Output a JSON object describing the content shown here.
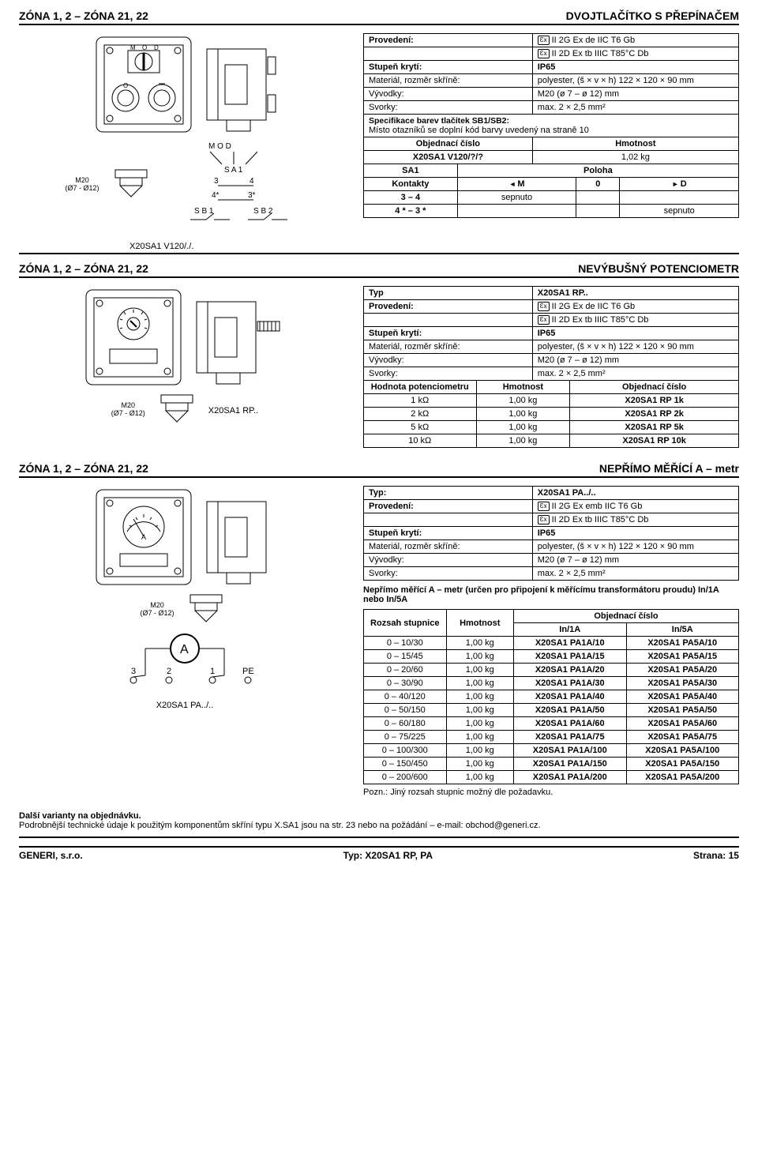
{
  "s1": {
    "zone": "ZÓNA 1, 2 – ZÓNA 21, 22",
    "title": "DVOJTLAČÍTKO S PŘEPÍNAČEM",
    "specs": {
      "provedeni_label": "Provedení:",
      "provedeni_l1": "II 2G Ex de IIC T6 Gb",
      "provedeni_l2": "II 2D Ex tb IIIC T85°C Db",
      "stupen_label": "Stupeň krytí:",
      "stupen": "IP65",
      "material_label": "Materiál, rozměr skříně:",
      "material": "polyester, (š × v × h) 122 × 120 × 90 mm",
      "vyvodky_label": "Vývodky:",
      "vyvodky": "M20 (ø 7 – ø 12) mm",
      "svorky_label": "Svorky:",
      "svorky": "max. 2 × 2,5 mm²",
      "spec_note1": "Specifikace barev tlačítek SB1/SB2:",
      "spec_note2": "Místo otazníků se doplní kód barvy uvedený na straně 10"
    },
    "order": {
      "h1": "Objednací číslo",
      "h2": "Hmotnost",
      "v1": "X20SA1 V120/?/?",
      "v2": "1,02 kg"
    },
    "contacts": {
      "sa1": "SA1",
      "poloha": "Poloha",
      "kontakty": "Kontakty",
      "m": "M",
      "zero": "0",
      "d": "D",
      "r1a": "3 – 4",
      "r1b": "sepnuto",
      "r2a": "4 * – 3 *",
      "r2c": "sepnuto"
    },
    "diagram": {
      "m20_label": "M20\n(Ø7 - Ø12)",
      "mod": "M  O  D",
      "sa1": "S A 1",
      "t3": "3",
      "t4": "4",
      "t4s": "4*",
      "t3s": "3*",
      "sb1": "S B 1",
      "sb2": "S B 2"
    },
    "ref": "X20SA1 V120/./."
  },
  "s2": {
    "zone": "ZÓNA 1, 2 – ZÓNA 21, 22",
    "title": "NEVÝBUŠNÝ POTENCIOMETR",
    "typ_label": "Typ",
    "typ": "X20SA1 RP..",
    "specs": {
      "provedeni_label": "Provedení:",
      "provedeni_l1": "II 2G Ex de IIC T6 Gb",
      "provedeni_l2": "II 2D Ex tb IIIC T85°C Db",
      "stupen_label": "Stupeň krytí:",
      "stupen": "IP65",
      "material_label": "Materiál, rozměr skříně:",
      "material": "polyester, (š × v × h) 122 × 120 × 90 mm",
      "vyvodky_label": "Vývodky:",
      "vyvodky": "M20 (ø 7 – ø 12) mm",
      "svorky_label": "Svorky:",
      "svorky": "max. 2 × 2,5 mm²"
    },
    "pot": {
      "h1": "Hodnota potenciometru",
      "h2": "Hmotnost",
      "h3": "Objednací číslo",
      "rows": [
        {
          "a": "1 kΩ",
          "b": "1,00 kg",
          "c": "X20SA1 RP 1k"
        },
        {
          "a": "2 kΩ",
          "b": "1,00 kg",
          "c": "X20SA1 RP 2k"
        },
        {
          "a": "5 kΩ",
          "b": "1,00 kg",
          "c": "X20SA1 RP 5k"
        },
        {
          "a": "10 kΩ",
          "b": "1,00 kg",
          "c": "X20SA1 RP 10k"
        }
      ]
    },
    "ref": "X20SA1 RP..",
    "diagram": {
      "m20_label": "M20\n(Ø7 - Ø12)"
    }
  },
  "s3": {
    "zone": "ZÓNA 1, 2 – ZÓNA 21, 22",
    "title": "NEPŘÍMO MĚŘÍCÍ A – metr",
    "typ_label": "Typ:",
    "typ": "X20SA1 PA../..",
    "specs": {
      "provedeni_label": "Provedení:",
      "provedeni_l1": "II 2G Ex emb IIC T6 Gb",
      "provedeni_l2": "II 2D Ex tb IIIC T85°C Db",
      "stupen_label": "Stupeň krytí:",
      "stupen": "IP65",
      "material_label": "Materiál, rozměr skříně:",
      "material": "polyester, (š × v × h) 122 × 120 × 90 mm",
      "vyvodky_label": "Vývodky:",
      "vyvodky": "M20 (ø 7 – ø 12) mm",
      "svorky_label": "Svorky:",
      "svorky": "max. 2 × 2,5 mm²"
    },
    "desc": "Nepřímo měřící A – metr (určen pro připojení k měřícímu transformátoru proudu) In/1A nebo In/5A",
    "table": {
      "h1": "Rozsah stupnice",
      "h2": "Hmotnost",
      "h3": "Objednací číslo",
      "h3a": "In/1A",
      "h3b": "In/5A",
      "rows": [
        {
          "a": "0 – 10/30",
          "b": "1,00 kg",
          "c": "X20SA1 PA1A/10",
          "d": "X20SA1 PA5A/10"
        },
        {
          "a": "0 – 15/45",
          "b": "1,00 kg",
          "c": "X20SA1 PA1A/15",
          "d": "X20SA1 PA5A/15"
        },
        {
          "a": "0 – 20/60",
          "b": "1,00 kg",
          "c": "X20SA1 PA1A/20",
          "d": "X20SA1 PA5A/20"
        },
        {
          "a": "0 – 30/90",
          "b": "1,00 kg",
          "c": "X20SA1 PA1A/30",
          "d": "X20SA1 PA5A/30"
        },
        {
          "a": "0 – 40/120",
          "b": "1,00 kg",
          "c": "X20SA1 PA1A/40",
          "d": "X20SA1 PA5A/40"
        },
        {
          "a": "0 – 50/150",
          "b": "1,00 kg",
          "c": "X20SA1 PA1A/50",
          "d": "X20SA1 PA5A/50"
        },
        {
          "a": "0 – 60/180",
          "b": "1,00 kg",
          "c": "X20SA1 PA1A/60",
          "d": "X20SA1 PA5A/60"
        },
        {
          "a": "0 – 75/225",
          "b": "1,00 kg",
          "c": "X20SA1 PA1A/75",
          "d": "X20SA1 PA5A/75"
        },
        {
          "a": "0 – 100/300",
          "b": "1,00 kg",
          "c": "X20SA1 PA1A/100",
          "d": "X20SA1 PA5A/100"
        },
        {
          "a": "0 – 150/450",
          "b": "1,00 kg",
          "c": "X20SA1 PA1A/150",
          "d": "X20SA1 PA5A/150"
        },
        {
          "a": "0 – 200/600",
          "b": "1,00 kg",
          "c": "X20SA1 PA1A/200",
          "d": "X20SA1 PA5A/200"
        }
      ]
    },
    "pozn": "Pozn.: Jiný rozsah stupnic možný dle požadavku.",
    "ref": "X20SA1 PA../..",
    "diagram": {
      "m20_label": "M20\n(Ø7 - Ø12)",
      "a": "A",
      "t3": "3",
      "t2": "2",
      "t1": "1",
      "tpe": "PE"
    }
  },
  "notes": {
    "l1": "Další varianty na objednávku.",
    "l2": "Podrobnější technické údaje k použitým komponentům skříní typu X.SA1 jsou na str. 23 nebo na požádání – e-mail: obchod@generi.cz."
  },
  "footer": {
    "left": "GENERI, s.r.o.",
    "mid": "Typ: X20SA1 RP, PA",
    "right": "Strana: 15"
  }
}
